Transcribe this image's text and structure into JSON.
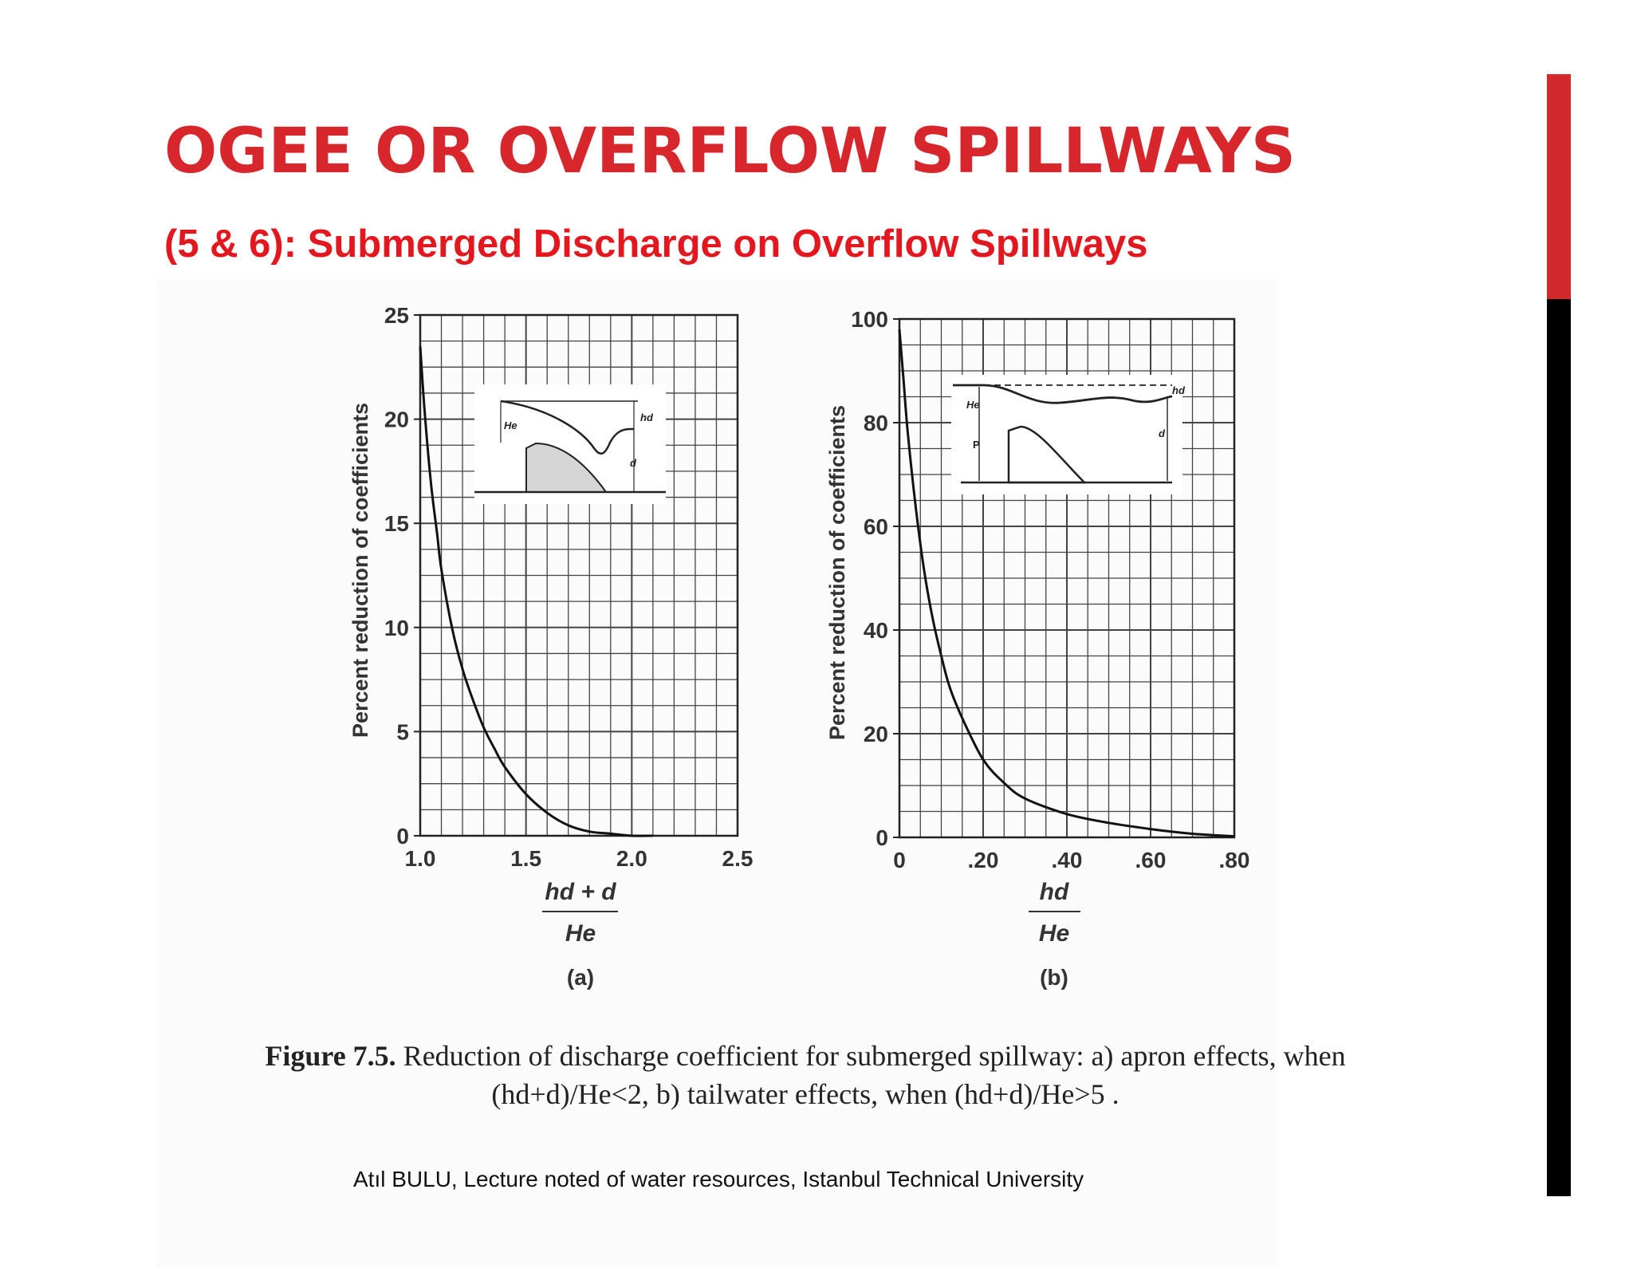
{
  "slide": {
    "title": "OGEE OR OVERFLOW SPILLWAYS",
    "subtitle": "(5 & 6): Submerged Discharge on Overflow Spillways",
    "caption_label": "Figure 7.5.",
    "caption_text": "Reduction of discharge coefficient for submerged spillway: a) apron effects, when (hd+d)/He<2, b) tailwater effects, when (hd+d)/He>5 .",
    "credit": "Atıl BULU, Lecture noted of water resources, Istanbul Technical University",
    "accent_red": "#d7262c",
    "sidebar_red": "#d3282c",
    "sidebar_black": "#000000"
  },
  "chart_data": [
    {
      "type": "line",
      "panel_label": "(a)",
      "ylabel": "Percent reduction of coefficients",
      "xlabel_numerator": "hd + d",
      "xlabel_denominator": "He",
      "xlim": [
        1.0,
        2.5
      ],
      "ylim": [
        0,
        25
      ],
      "xticks": [
        "1.0",
        "1.5",
        "2.0",
        "2.5"
      ],
      "yticks": [
        "0",
        "5",
        "10",
        "15",
        "20",
        "25"
      ],
      "grid": true,
      "inset_labels": [
        "He",
        "hd",
        "d"
      ],
      "series": [
        {
          "x": [
            1.0,
            1.02,
            1.05,
            1.08,
            1.1,
            1.15,
            1.2,
            1.25,
            1.3,
            1.35,
            1.4,
            1.5,
            1.6,
            1.7,
            1.8,
            1.9,
            2.0,
            2.1
          ],
          "y": [
            23.5,
            20.5,
            17.0,
            14.5,
            12.8,
            10.0,
            8.0,
            6.5,
            5.2,
            4.2,
            3.3,
            2.0,
            1.1,
            0.5,
            0.2,
            0.1,
            0.0,
            0.0
          ]
        }
      ]
    },
    {
      "type": "line",
      "panel_label": "(b)",
      "ylabel": "Percent reduction of coefficients",
      "xlabel_numerator": "hd",
      "xlabel_denominator": "He",
      "xlim": [
        0,
        0.8
      ],
      "ylim": [
        0,
        100
      ],
      "xticks": [
        "0",
        ".20",
        ".40",
        ".60",
        ".80"
      ],
      "yticks": [
        "0",
        "20",
        "40",
        "60",
        "80",
        "100"
      ],
      "grid": true,
      "inset_labels": [
        "hd",
        "He",
        "P",
        "d"
      ],
      "series": [
        {
          "x": [
            0.0,
            0.01,
            0.02,
            0.04,
            0.06,
            0.08,
            0.1,
            0.12,
            0.15,
            0.2,
            0.25,
            0.3,
            0.4,
            0.5,
            0.6,
            0.7,
            0.8
          ],
          "y": [
            98,
            88,
            78,
            63,
            51,
            42,
            35,
            29,
            23,
            15,
            10.5,
            7.5,
            4.5,
            2.8,
            1.6,
            0.7,
            0.2
          ]
        }
      ]
    }
  ]
}
